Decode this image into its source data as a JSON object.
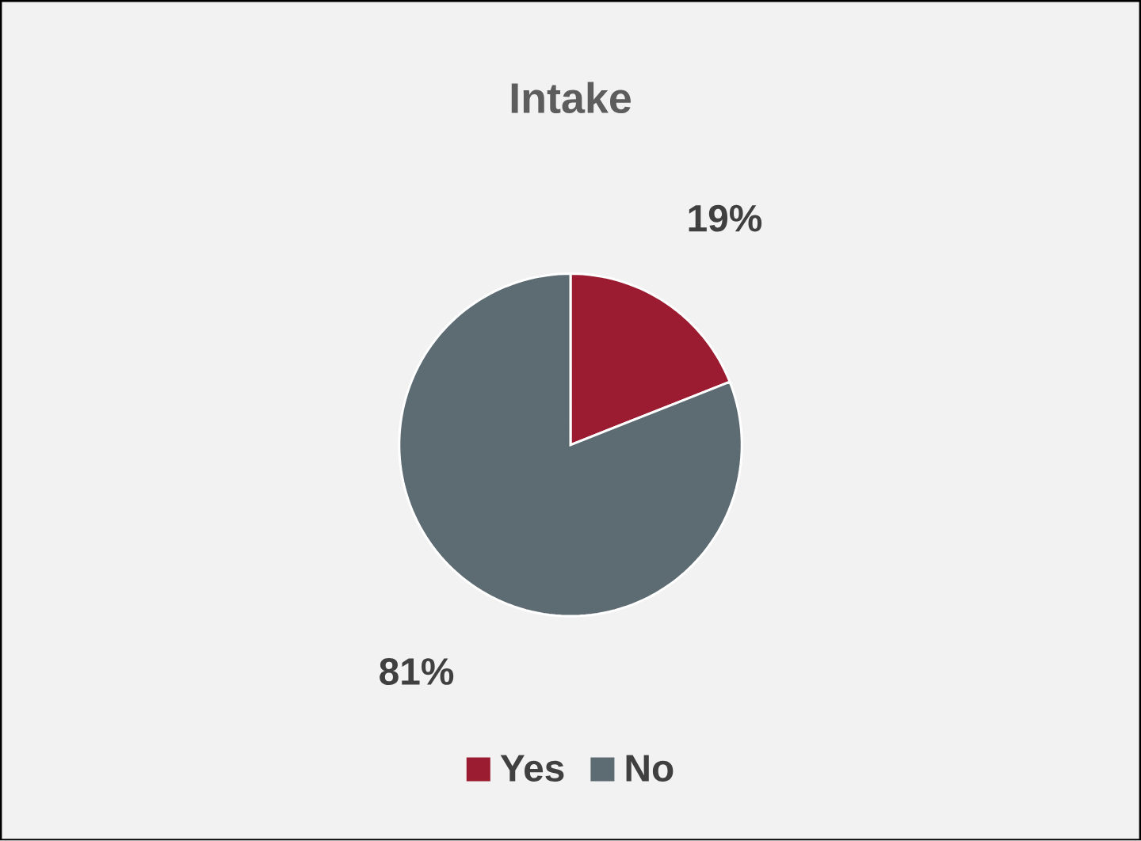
{
  "chart_data": {
    "type": "pie",
    "title": "Intake",
    "categories": [
      "Yes",
      "No"
    ],
    "values": [
      19,
      81
    ],
    "colors": [
      "#9b1c31",
      "#5d6b73"
    ],
    "value_labels": [
      "19%",
      "81%"
    ],
    "legend": "bottom"
  }
}
